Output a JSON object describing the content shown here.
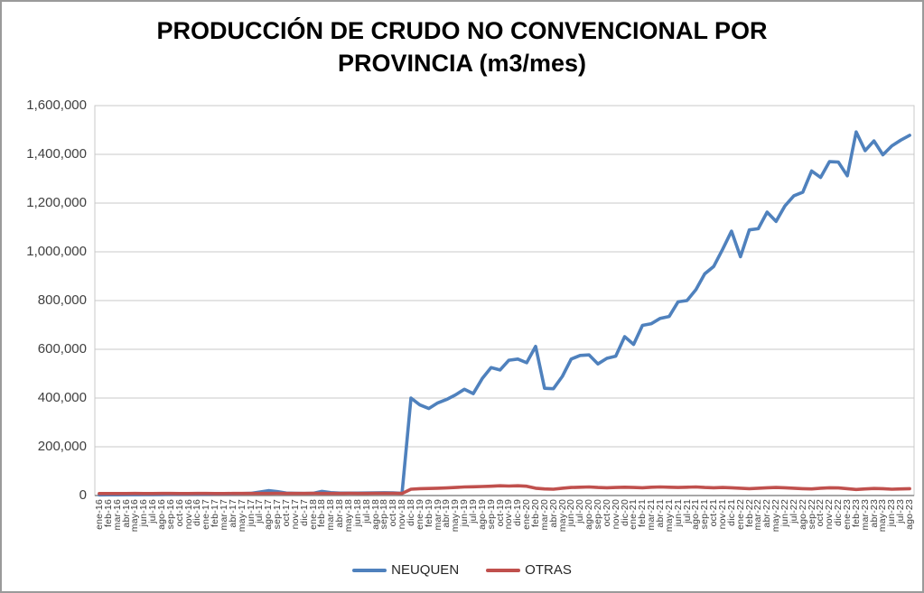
{
  "header": {
    "title_line1": "PRODUCCIÓN DE CRUDO NO CONVENCIONAL POR",
    "title_line2": "PROVINCIA (m3/mes)"
  },
  "chart_data": {
    "type": "line",
    "title": "PRODUCCIÓN DE CRUDO NO CONVENCIONAL POR PROVINCIA (m3/mes)",
    "xlabel": "",
    "ylabel": "",
    "ylim": [
      0,
      1600000
    ],
    "y_ticks": [
      0,
      200000,
      400000,
      600000,
      800000,
      1000000,
      1200000,
      1400000,
      1600000
    ],
    "grid": "horizontal",
    "legend_position": "bottom",
    "categories": [
      "ene-16",
      "feb-16",
      "mar-16",
      "abr-16",
      "may-16",
      "jun-16",
      "jul-16",
      "ago-16",
      "sep-16",
      "oct-16",
      "nov-16",
      "dic-16",
      "ene-17",
      "feb-17",
      "mar-17",
      "abr-17",
      "may-17",
      "jun-17",
      "jul-17",
      "ago-17",
      "sep-17",
      "oct-17",
      "nov-17",
      "dic-17",
      "ene-18",
      "feb-18",
      "mar-18",
      "abr-18",
      "may-18",
      "jun-18",
      "jul-18",
      "ago-18",
      "sep-18",
      "oct-18",
      "nov-18",
      "dic-18",
      "ene-19",
      "feb-19",
      "mar-19",
      "abr-19",
      "may-19",
      "jun-19",
      "jul-19",
      "ago-19",
      "sep-19",
      "oct-19",
      "nov-19",
      "dic-19",
      "ene-20",
      "feb-20",
      "mar-20",
      "abr-20",
      "may-20",
      "jun-20",
      "jul-20",
      "ago-20",
      "sep-20",
      "oct-20",
      "nov-20",
      "dic-20",
      "ene-21",
      "feb-21",
      "mar-21",
      "abr-21",
      "may-21",
      "jun-21",
      "jul-21",
      "ago-21",
      "sep-21",
      "oct-21",
      "nov-21",
      "dic-21",
      "ene-22",
      "feb-22",
      "mar-22",
      "abr-22",
      "may-22",
      "jun-22",
      "jul-22",
      "ago-22",
      "sep-22",
      "oct-22",
      "nov-22",
      "dic-22",
      "ene-23",
      "feb-23",
      "mar-23",
      "abr-23",
      "may-23",
      "jun-23",
      "jul-23",
      "ago-23"
    ],
    "series": [
      {
        "name": "NEUQUEN",
        "color": "#4F81BD",
        "values": [
          2500,
          2800,
          3000,
          3200,
          3500,
          3800,
          4200,
          4500,
          5000,
          5200,
          5500,
          6000,
          6000,
          6500,
          7000,
          7500,
          8000,
          9000,
          14000,
          20000,
          16000,
          10000,
          9000,
          8500,
          9000,
          17000,
          12000,
          10000,
          10000,
          10000,
          10500,
          11000,
          11500,
          11000,
          9000,
          400000,
          372000,
          357000,
          380000,
          394000,
          413000,
          436000,
          418000,
          480000,
          525000,
          515000,
          555000,
          560000,
          545000,
          612000,
          440000,
          438000,
          489000,
          560000,
          575000,
          577000,
          540000,
          563000,
          572000,
          652000,
          620000,
          698000,
          705000,
          727000,
          735000,
          795000,
          800000,
          845000,
          910000,
          940000,
          1010000,
          1085000,
          980000,
          1090000,
          1095000,
          1163000,
          1125000,
          1188000,
          1230000,
          1245000,
          1332000,
          1305000,
          1370000,
          1368000,
          1312000,
          1492000,
          1415000,
          1455000,
          1398000,
          1435000,
          1458000,
          1478000
        ]
      },
      {
        "name": "OTRAS",
        "color": "#C0504D",
        "values": [
          8000,
          8200,
          8100,
          8300,
          8400,
          8300,
          8200,
          8400,
          8500,
          8300,
          8200,
          8500,
          8500,
          8300,
          8200,
          8400,
          8600,
          8500,
          8400,
          8600,
          8800,
          8600,
          8500,
          8700,
          8800,
          8600,
          8500,
          8700,
          8800,
          8700,
          8600,
          8800,
          9000,
          8800,
          8700,
          26000,
          28000,
          29000,
          30000,
          31000,
          33000,
          35000,
          36000,
          37000,
          38000,
          40000,
          39000,
          40000,
          38000,
          30000,
          27000,
          26000,
          30000,
          33000,
          34000,
          35000,
          33000,
          32000,
          33000,
          34000,
          33000,
          32000,
          34000,
          35000,
          34000,
          33000,
          34000,
          35000,
          33000,
          32000,
          33000,
          32000,
          30000,
          28000,
          30000,
          32000,
          33000,
          32000,
          30000,
          28000,
          27000,
          30000,
          32000,
          31000,
          28000,
          25000,
          27000,
          29000,
          28000,
          26000,
          27000,
          28000
        ]
      }
    ]
  }
}
